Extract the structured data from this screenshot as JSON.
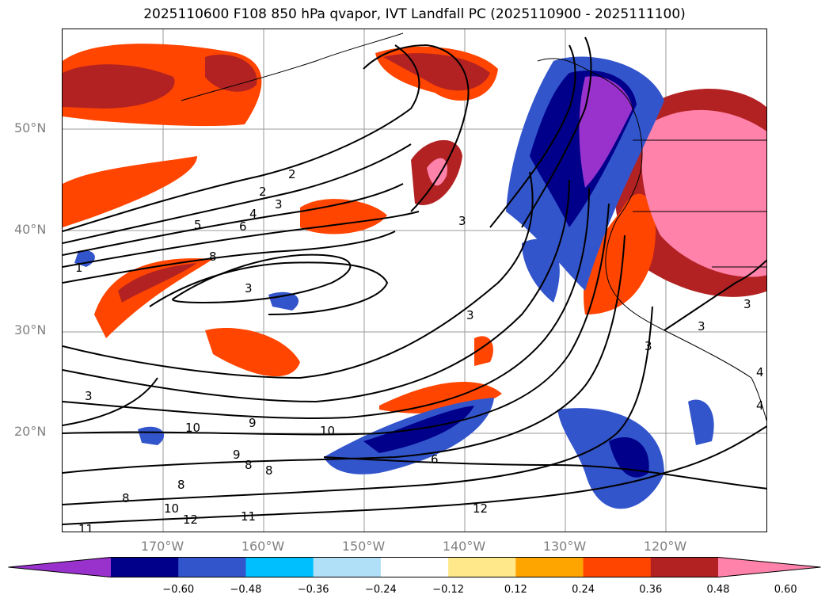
{
  "title": "2025110600 F108 850 hPa qvapor, IVT Landfall PC (2025110900 - 2025111100)",
  "lat_labels": [
    "50°N",
    "40°N",
    "30°N",
    "20°N"
  ],
  "lon_labels": [
    "170°W",
    "160°W",
    "150°W",
    "140°W",
    "130°W",
    "120°W"
  ],
  "colorbar": {
    "colors": [
      "#9932cc",
      "#00008b",
      "#3355cc",
      "#00bfff",
      "#b0e0f8",
      "#ffffff",
      "#ffe88a",
      "#ffa500",
      "#ff4500",
      "#b22222",
      "#ff82ab"
    ],
    "ticks": [
      "−0.60",
      "−0.48",
      "−0.36",
      "−0.24",
      "−0.12",
      "0.12",
      "0.24",
      "0.36",
      "0.48",
      "0.60"
    ]
  },
  "contour_labels": [
    "2",
    "2",
    "3",
    "4",
    "5",
    "6",
    "3",
    "8",
    "1",
    "3",
    "3",
    "3",
    "3",
    "10",
    "9",
    "10",
    "9",
    "8",
    "8",
    "8",
    "8",
    "10",
    "12",
    "11",
    "11",
    "6",
    "12",
    "3",
    "3",
    "4",
    "4"
  ]
}
